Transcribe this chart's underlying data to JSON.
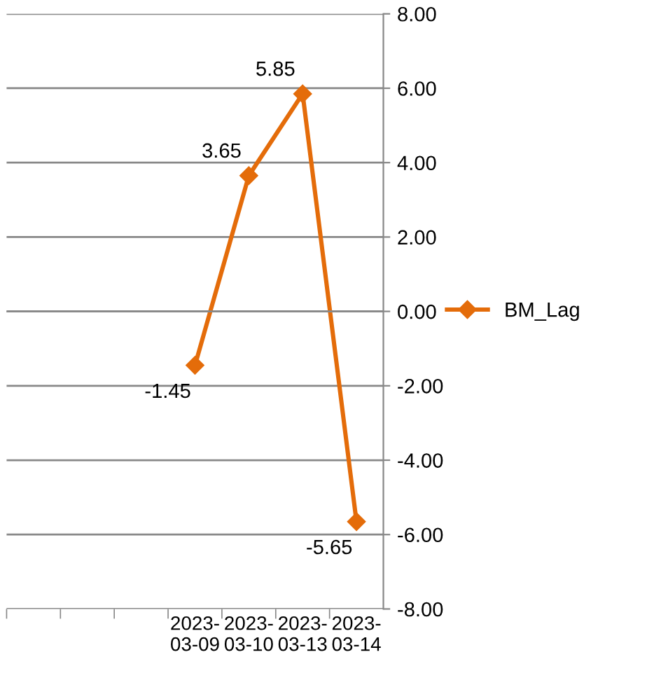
{
  "chart_data": {
    "type": "line",
    "categories": [
      null,
      null,
      null,
      "2023-\n03-09",
      "2023-\n03-10",
      "2023-\n03-13",
      "2023-\n03-14"
    ],
    "series": [
      {
        "name": "BM_Lag",
        "color": "#e46c0a",
        "values": [
          null,
          null,
          null,
          -1.45,
          3.65,
          5.85,
          -5.65
        ]
      }
    ],
    "ylim": [
      -8,
      8
    ],
    "yticks": [
      {
        "value": -8,
        "label": "-8.00"
      },
      {
        "value": -6,
        "label": "-6.00"
      },
      {
        "value": -4,
        "label": "-4.00"
      },
      {
        "value": -2,
        "label": "-2.00"
      },
      {
        "value": 0,
        "label": "0.00"
      },
      {
        "value": 2,
        "label": "2.00"
      },
      {
        "value": 4,
        "label": "4.00"
      },
      {
        "value": 6,
        "label": "6.00"
      },
      {
        "value": 8,
        "label": "8.00"
      }
    ],
    "grid": "y",
    "legend": "right",
    "marker": "diamond",
    "line_style": "solid",
    "data_labels": true
  }
}
